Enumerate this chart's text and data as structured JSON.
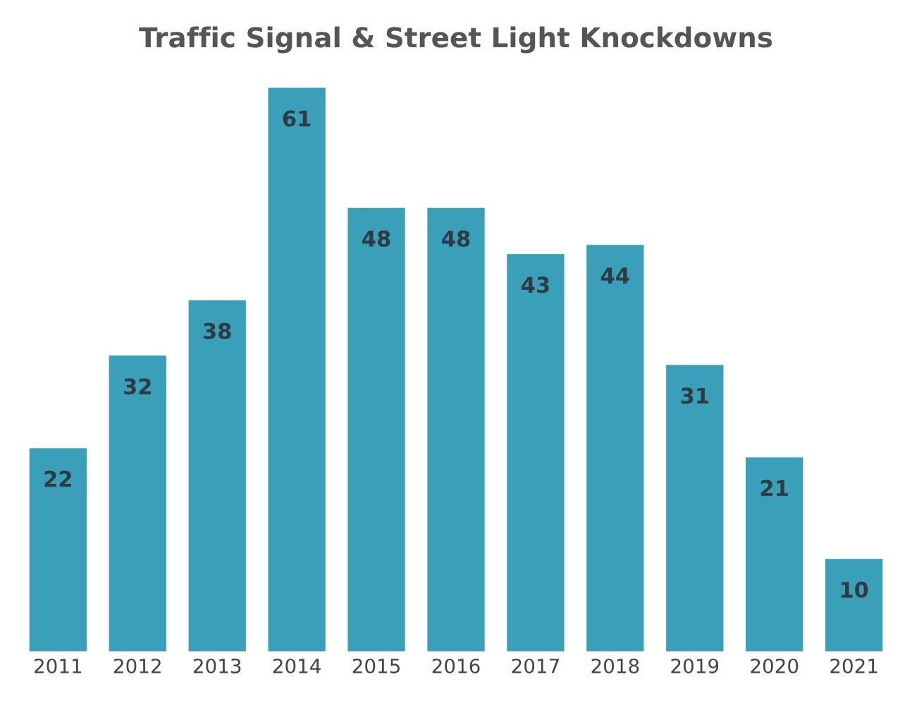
{
  "chart_data": {
    "type": "bar",
    "title": "Traffic Signal & Street Light Knockdowns",
    "categories": [
      "2011",
      "2012",
      "2013",
      "2014",
      "2015",
      "2016",
      "2017",
      "2018",
      "2019",
      "2020",
      "2021"
    ],
    "values": [
      22,
      32,
      38,
      61,
      48,
      48,
      43,
      44,
      31,
      21,
      10
    ],
    "color": "#3a9fb8",
    "data_labels": true,
    "tick_labels": "x"
  }
}
